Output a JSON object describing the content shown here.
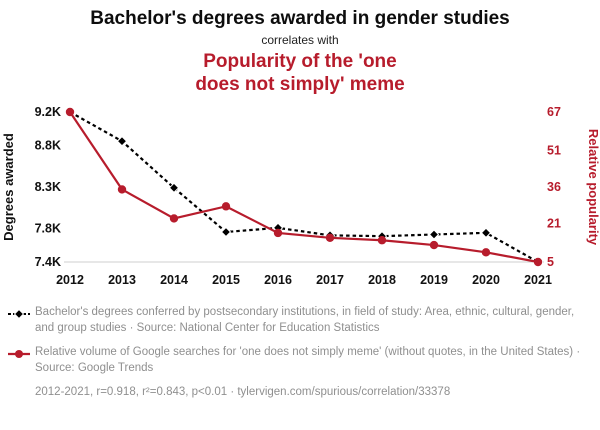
{
  "header": {
    "title": "Bachelor's degrees awarded in gender studies",
    "connector": "correlates with",
    "subtitle": "Popularity of the 'one does not simply' meme",
    "subtitle_lines": [
      "Popularity of the 'one",
      "does not simply' meme"
    ]
  },
  "colors": {
    "accent_red": "#b71c2c",
    "series_black": "#000000",
    "legend_grey": "#8f8f8f",
    "axis_baseline": "#cfcfcf"
  },
  "chart_data": {
    "type": "line",
    "title": "Bachelor's degrees awarded in gender studies correlates with Popularity of the 'one does not simply' meme",
    "x": [
      2012,
      2013,
      2014,
      2015,
      2016,
      2017,
      2018,
      2019,
      2020,
      2021
    ],
    "series": [
      {
        "name": "Bachelor's degrees awarded in gender studies",
        "axis": "left",
        "color": "#000000",
        "marker": "diamond",
        "dash": true,
        "values": [
          9200,
          8850,
          8290,
          7760,
          7810,
          7720,
          7710,
          7730,
          7750,
          7400
        ]
      },
      {
        "name": "Popularity of the 'one does not simply' meme",
        "axis": "right",
        "color": "#b71c2c",
        "marker": "circle",
        "dash": false,
        "values": [
          67,
          35,
          23,
          28,
          17,
          15,
          14,
          12,
          9,
          5
        ]
      }
    ],
    "left_axis": {
      "label": "Degrees awarded",
      "ticks": [
        "9.2K",
        "8.8K",
        "8.3K",
        "7.8K",
        "7.4K"
      ],
      "tick_values": [
        9200,
        8800,
        8300,
        7800,
        7400
      ],
      "range": [
        7400,
        9200
      ]
    },
    "right_axis": {
      "label": "Relative popularity",
      "ticks": [
        "67",
        "51",
        "36",
        "21",
        "5"
      ],
      "tick_values": [
        67,
        51,
        36,
        21,
        5
      ],
      "range": [
        5,
        67
      ]
    },
    "grid": false,
    "legend_position": "bottom"
  },
  "legend": [
    {
      "text": "Bachelor's degrees conferred by postsecondary institutions, in field of study: Area, ethnic, cultural, gender, and group studies · Source: National Center for Education Statistics"
    },
    {
      "text": "Relative volume of Google searches for 'one does not simply meme' (without quotes, in the United States) · Source: Google Trends"
    }
  ],
  "footer": "2012-2021, r=0.918, r²=0.843, p<0.01 · tylervigen.com/spurious/correlation/33378"
}
